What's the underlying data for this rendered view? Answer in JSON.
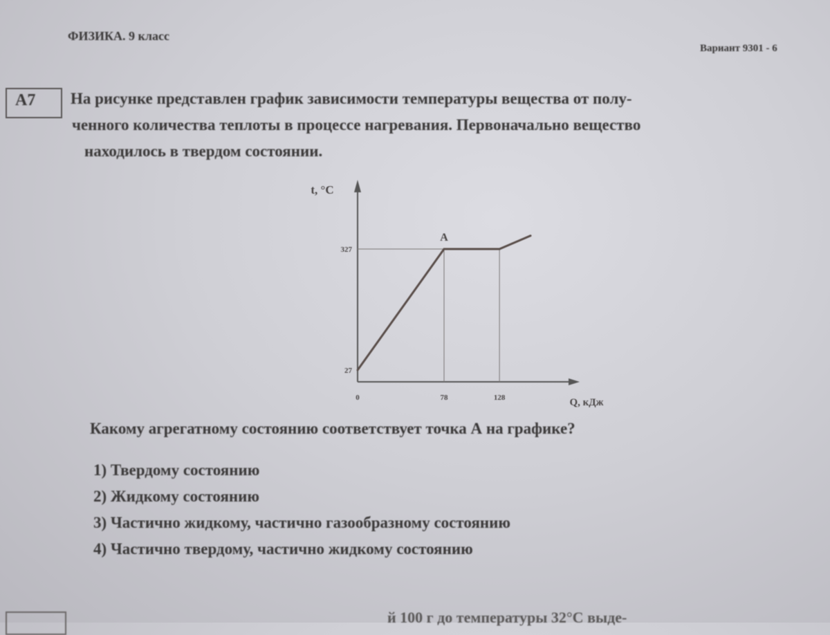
{
  "header": {
    "subject": "ФИЗИКА. 9 класс",
    "variant": "Вариант 9301 - 6"
  },
  "task": {
    "number": "А7",
    "text_lines": [
      "На рисунке представлен график зависимости температуры вещества от полу-",
      "ченного количества теплоты в процессе нагревания. Первоначально вещество",
      "находилось в твердом состоянии."
    ],
    "question": "Какому агрегатному состоянию соответствует точка А на графике?",
    "options": [
      "1)  Твердому состоянию",
      "2)  Жидкому состоянию",
      "3)  Частично жидкому, частично газообразному состоянию",
      "4)  Частично твердому, частично жидкому состоянию"
    ]
  },
  "next_task": {
    "partial_text": "й 100 г до температуры 32°С выде-"
  },
  "chart_data": {
    "type": "line",
    "xlabel": "Q, кДж",
    "ylabel": "t, °C",
    "x_ticks": [
      "0",
      "78",
      "128"
    ],
    "y_ticks": [
      "27",
      "327"
    ],
    "series": [
      {
        "x": [
          0,
          78,
          128,
          156
        ],
        "y": [
          27,
          327,
          327,
          360
        ]
      }
    ],
    "point_label": {
      "text": "А",
      "x": 78,
      "y": 327
    },
    "guides": [
      {
        "x": 78,
        "y": 327
      },
      {
        "x": 128,
        "y": 327
      }
    ],
    "grid": false,
    "line_color": "#5a4e4a"
  }
}
